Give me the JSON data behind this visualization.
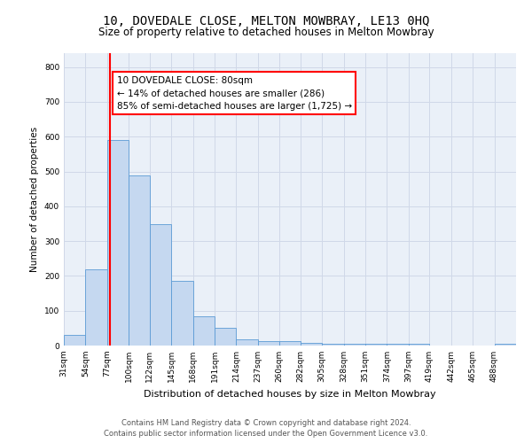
{
  "title_line1": "10, DOVEDALE CLOSE, MELTON MOWBRAY, LE13 0HQ",
  "title_line2": "Size of property relative to detached houses in Melton Mowbray",
  "xlabel": "Distribution of detached houses by size in Melton Mowbray",
  "ylabel": "Number of detached properties",
  "categories": [
    "31sqm",
    "54sqm",
    "77sqm",
    "100sqm",
    "122sqm",
    "145sqm",
    "168sqm",
    "191sqm",
    "214sqm",
    "237sqm",
    "260sqm",
    "282sqm",
    "305sqm",
    "328sqm",
    "351sqm",
    "374sqm",
    "397sqm",
    "419sqm",
    "442sqm",
    "465sqm",
    "488sqm"
  ],
  "bin_edges": [
    31,
    54,
    77,
    100,
    122,
    145,
    168,
    191,
    214,
    237,
    260,
    282,
    305,
    328,
    351,
    374,
    397,
    419,
    442,
    465,
    488
  ],
  "values": [
    30,
    218,
    590,
    488,
    348,
    185,
    85,
    50,
    18,
    13,
    13,
    8,
    4,
    4,
    4,
    4,
    4,
    0,
    0,
    0,
    4
  ],
  "bar_color": "#c5d8f0",
  "bar_edge_color": "#5b9bd5",
  "property_size": 80,
  "property_line_color": "#ff0000",
  "annotation_line1": "10 DOVEDALE CLOSE: 80sqm",
  "annotation_line2": "← 14% of detached houses are smaller (286)",
  "annotation_line3": "85% of semi-detached houses are larger (1,725) →",
  "annotation_box_color": "#ffffff",
  "annotation_box_edge_color": "#ff0000",
  "ylim": [
    0,
    840
  ],
  "yticks": [
    0,
    100,
    200,
    300,
    400,
    500,
    600,
    700,
    800
  ],
  "grid_color": "#d0d8e8",
  "background_color": "#eaf0f8",
  "footer_line1": "Contains HM Land Registry data © Crown copyright and database right 2024.",
  "footer_line2": "Contains public sector information licensed under the Open Government Licence v3.0.",
  "title_fontsize": 10,
  "subtitle_fontsize": 8.5,
  "xlabel_fontsize": 8,
  "ylabel_fontsize": 7.5,
  "tick_fontsize": 6.5,
  "annotation_fontsize": 7.5,
  "footer_fontsize": 6
}
